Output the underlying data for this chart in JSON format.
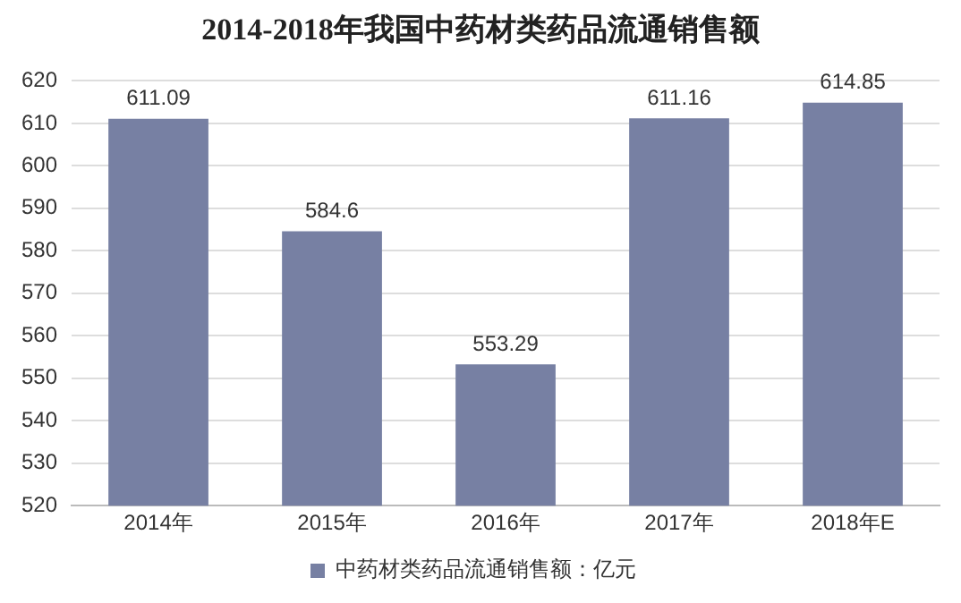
{
  "chart_data": {
    "type": "bar",
    "title": "2014-2018年我国中药材类药品流通销售额",
    "categories": [
      "2014年",
      "2015年",
      "2016年",
      "2017年",
      "2018年E"
    ],
    "series": [
      {
        "name": "中药材类药品流通销售额：亿元",
        "color": "#7780a3",
        "values": [
          611.09,
          584.6,
          553.29,
          611.16,
          614.85
        ]
      }
    ],
    "ylim": [
      520,
      620
    ],
    "yticks": [
      520,
      530,
      540,
      550,
      560,
      570,
      580,
      590,
      600,
      610,
      620
    ],
    "grid": "y",
    "legend": "bottom",
    "data_labels": true
  }
}
